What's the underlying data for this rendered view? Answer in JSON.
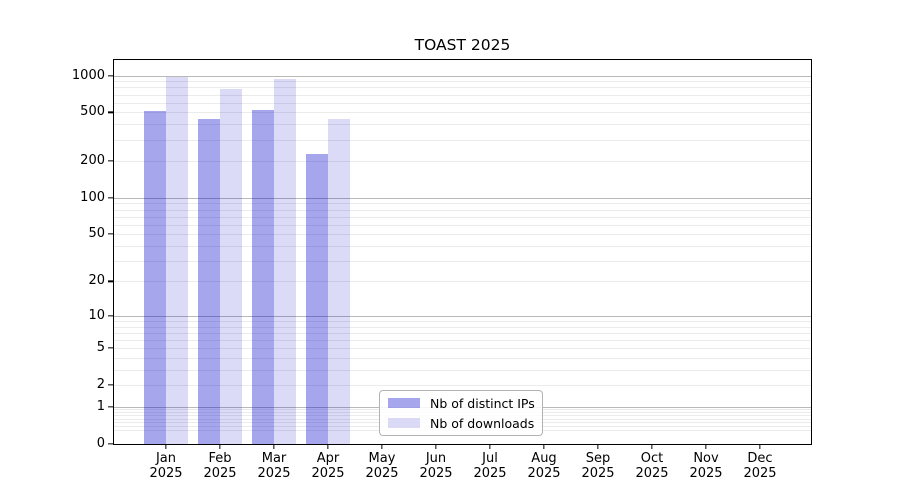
{
  "chart_data": {
    "type": "bar",
    "title": "TOAST 2025",
    "categories": [
      "Jan 2025",
      "Feb 2025",
      "Mar 2025",
      "Apr 2025",
      "May 2025",
      "Jun 2025",
      "Jul 2025",
      "Aug 2025",
      "Sep 2025",
      "Oct 2025",
      "Nov 2025",
      "Dec 2025"
    ],
    "months": [
      "Jan",
      "Feb",
      "Mar",
      "Apr",
      "May",
      "Jun",
      "Jul",
      "Aug",
      "Sep",
      "Oct",
      "Nov",
      "Dec"
    ],
    "year": "2025",
    "series": [
      {
        "name": "Nb of distinct IPs",
        "color": "rgba(0,0,204,0.35)",
        "values": [
          510,
          440,
          525,
          230,
          0,
          0,
          0,
          0,
          0,
          0,
          0,
          0
        ]
      },
      {
        "name": "Nb of downloads",
        "color": "rgba(0,0,204,0.14)",
        "values": [
          965,
          770,
          945,
          440,
          0,
          0,
          0,
          0,
          0,
          0,
          0,
          0
        ]
      }
    ],
    "y_scale": "log1p",
    "ylim": [
      0,
      1340
    ],
    "y_ticks": [
      0,
      1,
      2,
      5,
      10,
      20,
      50,
      100,
      200,
      500,
      1000
    ],
    "y_major_grid": [
      1,
      10,
      100,
      1000
    ],
    "y_minor_grid": [
      0.3,
      0.4,
      0.5,
      0.6,
      0.7,
      0.8,
      0.9,
      2,
      3,
      4,
      5,
      6,
      7,
      8,
      9,
      20,
      30,
      40,
      50,
      60,
      70,
      80,
      90,
      200,
      300,
      400,
      500,
      600,
      700,
      800,
      900
    ],
    "grid": "on",
    "legend_position": "lower-center",
    "colors": {
      "grid_major": "#b9b9b9",
      "grid_minor": "#ebebeb",
      "axis": "#000000",
      "background": "#ffffff"
    }
  }
}
